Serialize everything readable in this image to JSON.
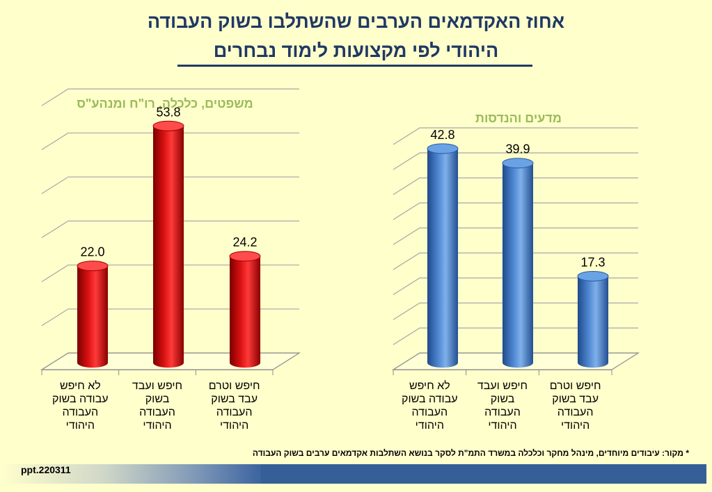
{
  "title_line1": "אחוז האקדמאים הערבים שהשתלבו בשוק העבודה",
  "title_line2": "היהודי לפי מקצועות לימוד נבחרים",
  "chart_data": [
    {
      "type": "bar",
      "title": "משפטים, כלכלה, רו\"ח ומנהע\"ס",
      "categories": [
        [
          "לא חיפש",
          "עבודה בשוק",
          "העבודה",
          "היהודי"
        ],
        [
          "חיפש ועבד",
          "בשוק",
          "העבודה",
          "היהודי"
        ],
        [
          "חיפש וטרם",
          "עבד בשוק",
          "העבודה",
          "היהודי"
        ]
      ],
      "values": [
        22.0,
        53.8,
        24.2
      ],
      "ylim": [
        0,
        60
      ],
      "grid": true,
      "color": "#c00000"
    },
    {
      "type": "bar",
      "title": "מדעים והנדסות",
      "categories": [
        [
          "לא חיפש",
          "עבודה בשוק",
          "העבודה",
          "היהודי"
        ],
        [
          "חיפש ועבד",
          "בשוק",
          "העבודה",
          "היהודי"
        ],
        [
          "חיפש וטרם",
          "עבד בשוק",
          "העבודה",
          "היהודי"
        ]
      ],
      "values": [
        42.8,
        39.9,
        17.3
      ],
      "ylim": [
        0,
        45
      ],
      "grid": true,
      "color": "#3e74c0"
    }
  ],
  "source_note": "* מקור: עיבודים מיוחדים, מינהל מחקר וכלכלה במשרד התמ\"ת לסקר בנושא השתלבות אקדמאים ערבים בשוק העבודה",
  "footer_text": "ppt.220311"
}
